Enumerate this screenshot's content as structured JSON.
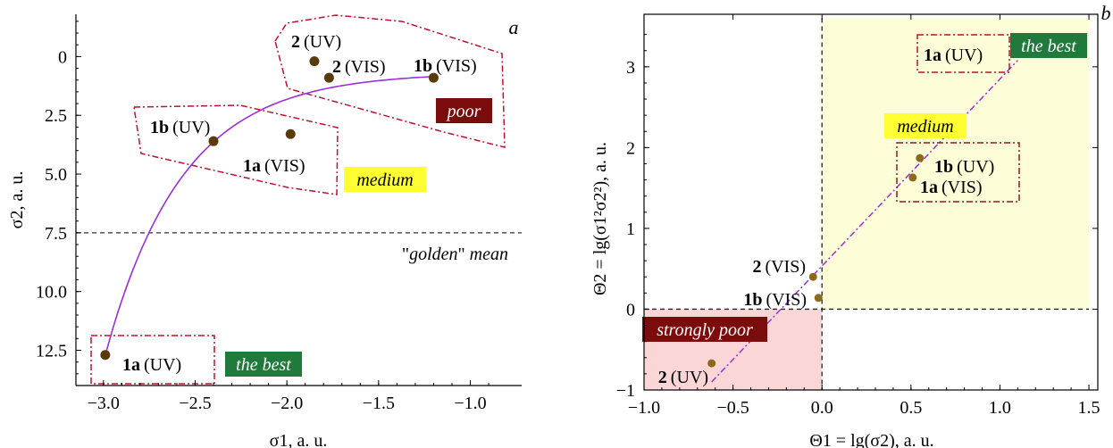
{
  "chart_data": [
    {
      "type": "scatter",
      "panel_label": "a",
      "xlabel": "σ1, a. u.",
      "ylabel": "σ2, a. u.",
      "xlim": [
        -3.15,
        -0.72
      ],
      "ylim": [
        14.0,
        -1.8
      ],
      "y_inverted": true,
      "xticks": [
        "−3.0",
        "−2.5",
        "−2.0",
        "−1.5",
        "−1.0"
      ],
      "xtick_values": [
        -3.0,
        -2.5,
        -2.0,
        -1.5,
        -1.0
      ],
      "yticks": [
        "0",
        "2.5",
        "5.0",
        "7.5",
        "10.0",
        "12.5"
      ],
      "ytick_values": [
        0,
        2.5,
        5.0,
        7.5,
        10.0,
        12.5
      ],
      "points": [
        {
          "label": "1a",
          "suffix": "(UV)",
          "x": -2.99,
          "y": 12.7
        },
        {
          "label": "1a",
          "suffix": "(VIS)",
          "x": -1.98,
          "y": 3.3
        },
        {
          "label": "1b",
          "suffix": "(UV)",
          "x": -2.4,
          "y": 3.6
        },
        {
          "label": "1b",
          "suffix": "(VIS)",
          "x": -1.2,
          "y": 0.9
        },
        {
          "label": "2",
          "suffix": "(UV)",
          "x": -1.85,
          "y": 0.2
        },
        {
          "label": "2",
          "suffix": "(VIS)",
          "x": -1.77,
          "y": 0.9
        }
      ],
      "fit_curve": {
        "type": "exponential",
        "color": "#9b30d9",
        "x_range": [
          -2.99,
          -1.2
        ]
      },
      "reference_line": {
        "y": 7.5,
        "label_prefix": "\"",
        "label_em": "golden",
        "label_mid": "\" ",
        "label_em2": "mean"
      },
      "regions": [
        {
          "name": "poor",
          "text": "poor",
          "bg": "#7a0c0c",
          "fg": "#ffffff"
        },
        {
          "name": "medium",
          "text": "medium",
          "bg": "#ffff33",
          "fg": "#000000"
        },
        {
          "name": "the-best",
          "text": "the best",
          "bg": "#1f7a3c",
          "fg": "#ffffff"
        }
      ]
    },
    {
      "type": "scatter",
      "panel_label": "b",
      "xlabel": "Θ1 = lg(σ2), a. u.",
      "ylabel": "Θ2 = lg(σ1²σ2²), a. u.",
      "xlim": [
        -1.0,
        1.55
      ],
      "ylim": [
        -1.0,
        3.65
      ],
      "xticks": [
        "−1.0",
        "−0.5",
        "0.0",
        "0.5",
        "1.0",
        "1.5"
      ],
      "xtick_values": [
        -1.0,
        -0.5,
        0.0,
        0.5,
        1.0,
        1.5
      ],
      "yticks": [
        "−1",
        "0",
        "1",
        "2",
        "3"
      ],
      "ytick_values": [
        -1,
        0,
        1,
        2,
        3
      ],
      "points": [
        {
          "label": "1a",
          "suffix": "(UV)",
          "x": 1.1,
          "y": 3.17
        },
        {
          "label": "1a",
          "suffix": "(VIS)",
          "x": 0.51,
          "y": 1.63
        },
        {
          "label": "1b",
          "suffix": "(UV)",
          "x": 0.55,
          "y": 1.87
        },
        {
          "label": "1b",
          "suffix": "(VIS)",
          "x": -0.02,
          "y": 0.14
        },
        {
          "label": "2",
          "suffix": "(UV)",
          "x": -0.62,
          "y": -0.67
        },
        {
          "label": "2",
          "suffix": "(VIS)",
          "x": -0.05,
          "y": 0.4
        }
      ],
      "fit_line": {
        "x_range": [
          -0.62,
          1.1
        ],
        "color": "#9b30d9"
      },
      "regions": [
        {
          "name": "medium",
          "text": "medium",
          "bg": "#ffff33",
          "fg": "#000000"
        },
        {
          "name": "the-best",
          "text": "the best",
          "bg": "#1f7a3c",
          "fg": "#ffffff"
        },
        {
          "name": "strongly-poor",
          "text": "strongly poor",
          "bg": "#7a0c0c",
          "fg": "#ffffff"
        }
      ],
      "shading": {
        "positive_quadrant": "#fdfdd8",
        "negative_quadrant": "#fbd6d6"
      }
    }
  ],
  "colors": {
    "point": "#5a3a0a",
    "frame": "#c0102a",
    "curve": "#9b30d9"
  }
}
